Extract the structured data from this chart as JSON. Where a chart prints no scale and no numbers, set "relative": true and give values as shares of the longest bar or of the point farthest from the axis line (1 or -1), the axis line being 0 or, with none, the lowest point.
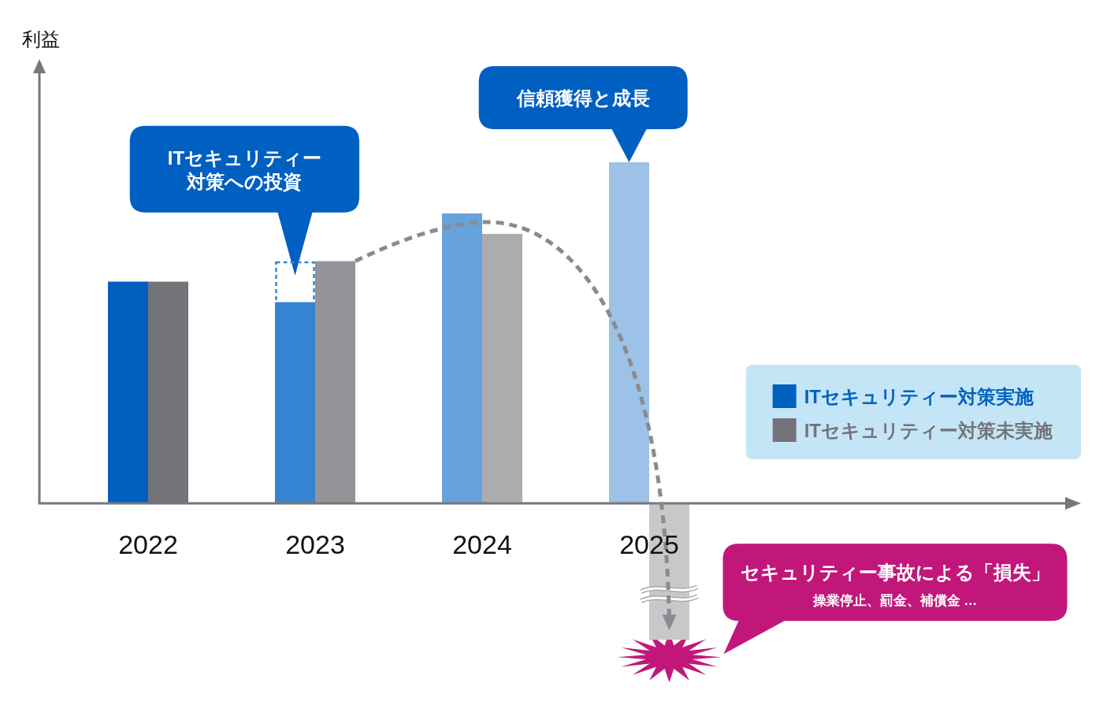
{
  "chart_data": {
    "type": "bar",
    "relative": true,
    "categories": [
      "2022",
      "2023",
      "2024",
      "2025"
    ],
    "series": [
      {
        "name": "ITセキュリティー対策実施",
        "colors": [
          "#0060c0",
          "#3584d3",
          "#66a2db",
          "#9cc2e7"
        ],
        "values": [
          0.65,
          0.59,
          0.85,
          1
        ]
      },
      {
        "name": "ITセキュリティー対策未実施",
        "colors": [
          "#737379",
          "#939398",
          "#acacaf",
          "#c8c8cb"
        ],
        "values": [
          0.65,
          0.71,
          0.79,
          -0.4
        ]
      },
      {
        "color": "#3584d3",
        "line_style": "dashed",
        "values": [
          null,
          0.71,
          null,
          null
        ]
      }
    ],
    "legend": "bottom right",
    "annotations": [
      "利益",
      "ITセキュリティー対策への投資",
      "信頼獲得と成長",
      "セキュリティー事故による「損失」",
      "操業停止、罰金、補償金 …"
    ]
  }
}
